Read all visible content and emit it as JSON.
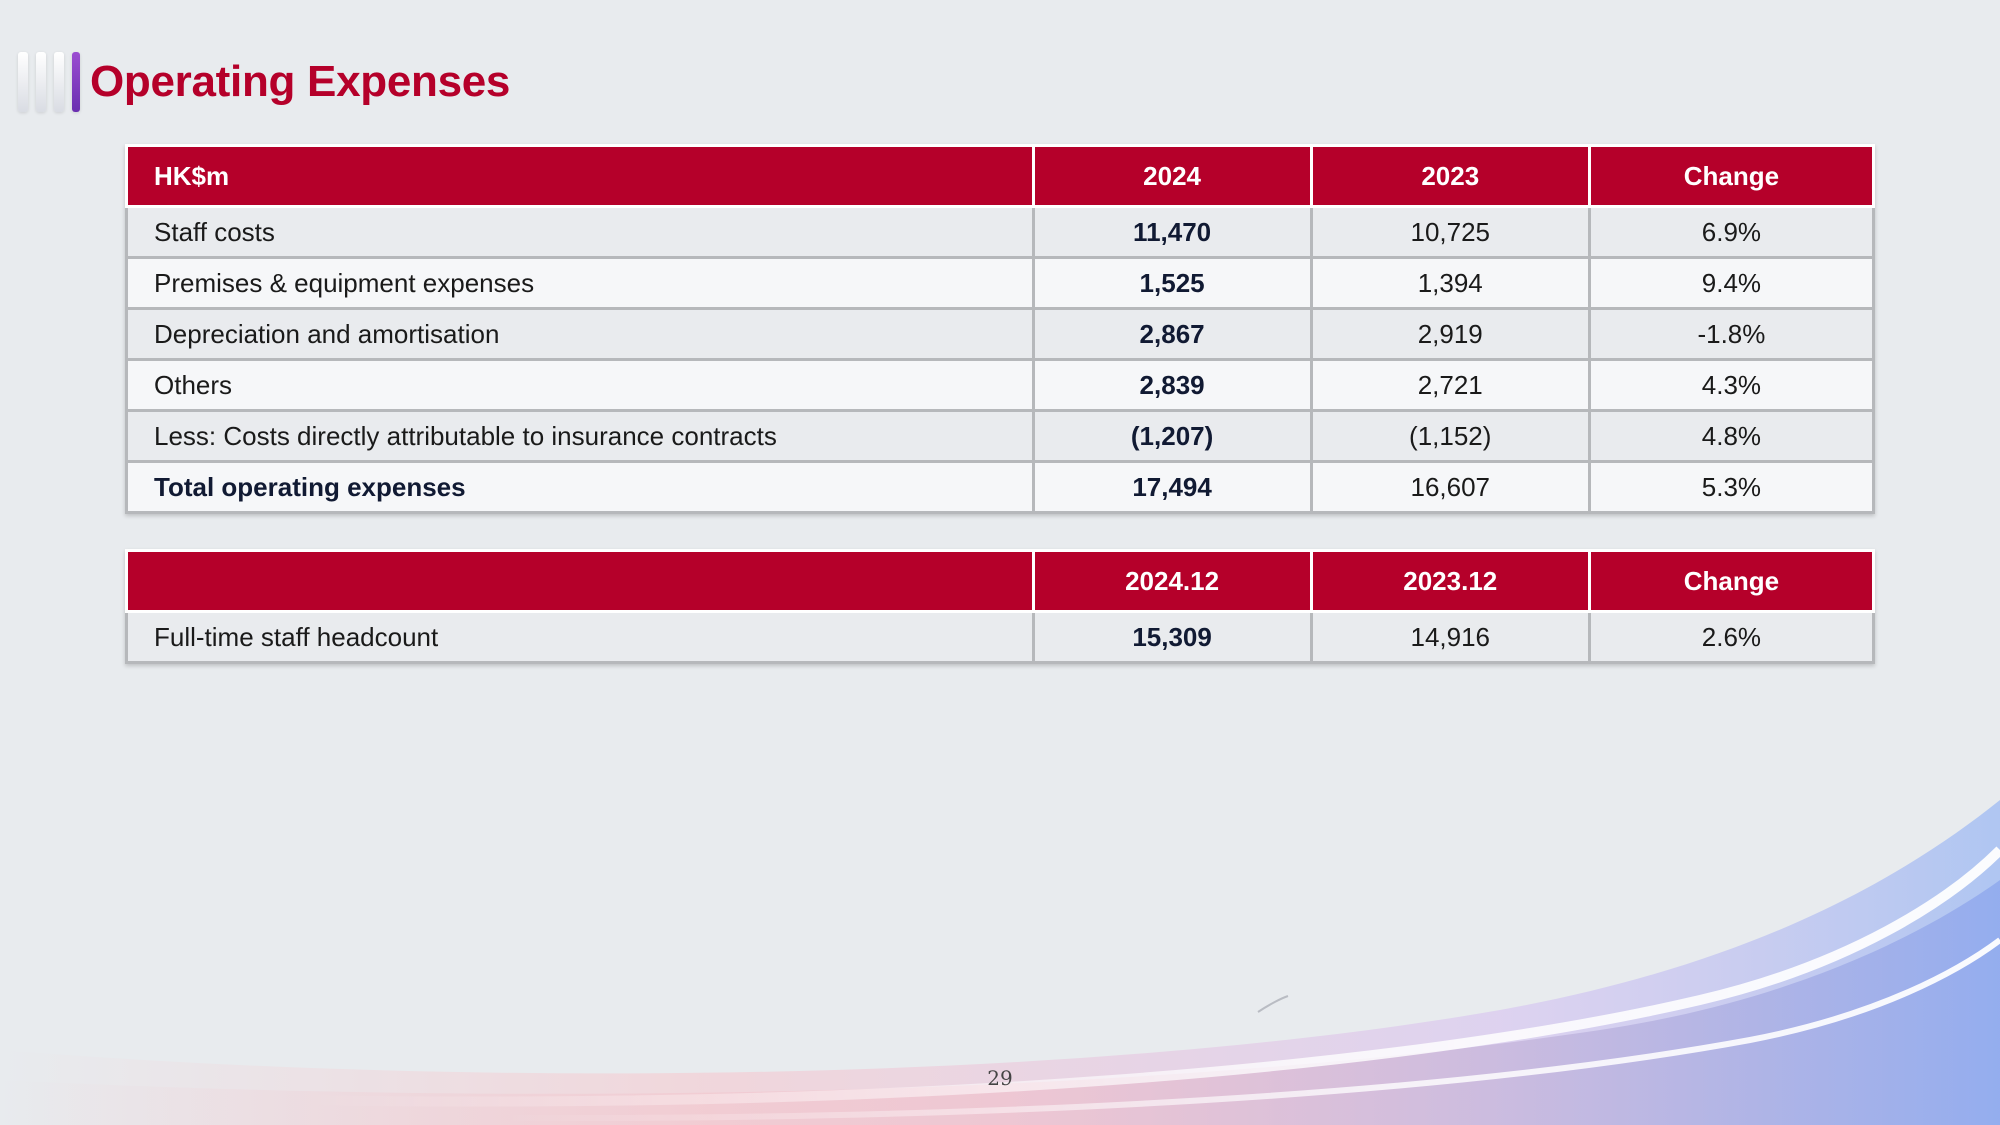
{
  "title": "Operating Expenses",
  "expenses_table": {
    "headers": [
      "HK$m",
      "2024",
      "2023",
      "Change"
    ],
    "rows": [
      {
        "label": "Staff costs",
        "y2024": "11,470",
        "y2023": "10,725",
        "change": "6.9%"
      },
      {
        "label": "Premises & equipment expenses",
        "y2024": "1,525",
        "y2023": "1,394",
        "change": "9.4%"
      },
      {
        "label": "Depreciation and amortisation",
        "y2024": "2,867",
        "y2023": "2,919",
        "change": "-1.8%"
      },
      {
        "label": "Others",
        "y2024": "2,839",
        "y2023": "2,721",
        "change": "4.3%"
      },
      {
        "label": "Less: Costs directly attributable to insurance contracts",
        "y2024": "(1,207)",
        "y2023": "(1,152)",
        "change": "4.8%"
      },
      {
        "label": "Total operating expenses",
        "y2024": "17,494",
        "y2023": "16,607",
        "change": "5.3%"
      }
    ]
  },
  "headcount_table": {
    "headers": [
      "",
      "2024.12",
      "2023.12",
      "Change"
    ],
    "rows": [
      {
        "label": "Full-time staff headcount",
        "y2024": "15,309",
        "y2023": "14,916",
        "change": "2.6%"
      }
    ]
  },
  "page_number": "29",
  "colors": {
    "brand_red": "#b5002a",
    "accent_purple": "#8a3fc8"
  }
}
